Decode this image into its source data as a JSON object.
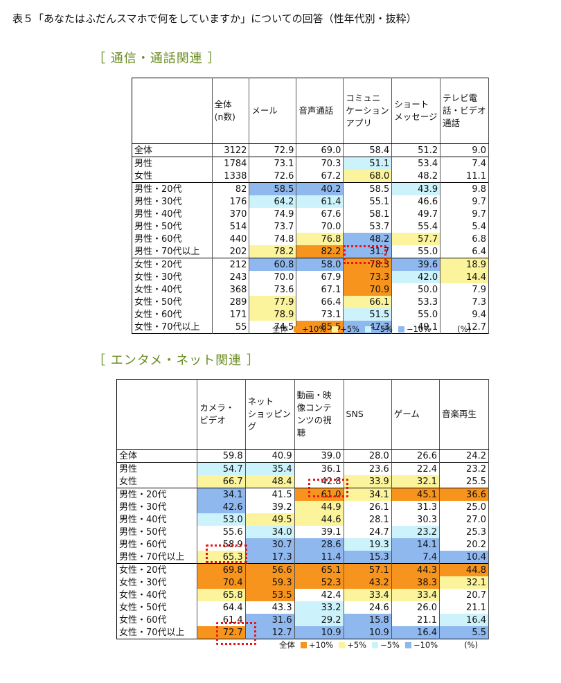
{
  "title": "表５「あなたはふだんスマホで何をしていますか」についての回答（性年代別・抜粋）",
  "sections": [
    {
      "title": "［ 通信・通話関連 ］",
      "headers": [
        "",
        "全体\n(n数)",
        "メール",
        "音声通話",
        "コミュニ\nケーション\nアプリ",
        "ショート\nメッセージ",
        "テレビ電\n話・ビデオ\n通話"
      ],
      "rows": [
        {
          "label": "全体",
          "n": "3122",
          "v": [
            "72.9",
            "69.0",
            "58.4",
            "51.2",
            "9.0"
          ],
          "h": [
            "",
            "",
            "",
            "",
            ""
          ]
        },
        {
          "label": "男性",
          "n": "1784",
          "v": [
            "73.1",
            "70.3",
            "51.1",
            "53.4",
            "7.4"
          ],
          "h": [
            "",
            "",
            "lo5",
            "",
            ""
          ]
        },
        {
          "label": "女性",
          "n": "1338",
          "v": [
            "72.6",
            "67.2",
            "68.0",
            "48.2",
            "11.1"
          ],
          "h": [
            "",
            "",
            "hi5",
            "",
            ""
          ]
        },
        {
          "label": "男性・20代",
          "n": "82",
          "v": [
            "58.5",
            "40.2",
            "58.5",
            "43.9",
            "9.8"
          ],
          "h": [
            "lo10",
            "lo10",
            "",
            "lo5",
            ""
          ]
        },
        {
          "label": "男性・30代",
          "n": "176",
          "v": [
            "64.2",
            "61.4",
            "55.1",
            "46.6",
            "9.7"
          ],
          "h": [
            "lo5",
            "lo5",
            "",
            "",
            ""
          ]
        },
        {
          "label": "男性・40代",
          "n": "370",
          "v": [
            "74.9",
            "67.6",
            "58.1",
            "49.7",
            "9.7"
          ],
          "h": [
            "",
            "",
            "",
            "",
            ""
          ]
        },
        {
          "label": "男性・50代",
          "n": "514",
          "v": [
            "73.7",
            "70.0",
            "53.7",
            "55.4",
            "5.4"
          ],
          "h": [
            "",
            "",
            "",
            "",
            ""
          ]
        },
        {
          "label": "男性・60代",
          "n": "440",
          "v": [
            "74.8",
            "76.8",
            "48.2",
            "57.7",
            "6.8"
          ],
          "h": [
            "",
            "hi5",
            "lo10",
            "hi5",
            ""
          ]
        },
        {
          "label": "男性・70代以上",
          "n": "202",
          "v": [
            "78.2",
            "82.2",
            "31.7",
            "55.0",
            "6.4"
          ],
          "h": [
            "hi5",
            "hi10",
            "lo10",
            "",
            ""
          ]
        },
        {
          "label": "女性・20代",
          "n": "212",
          "v": [
            "60.8",
            "58.0",
            "78.3",
            "39.6",
            "18.9"
          ],
          "h": [
            "lo10",
            "lo10",
            "hi10",
            "lo10",
            "hi5"
          ]
        },
        {
          "label": "女性・30代",
          "n": "243",
          "v": [
            "70.0",
            "67.9",
            "73.3",
            "42.0",
            "14.4"
          ],
          "h": [
            "",
            "",
            "hi10",
            "lo5",
            "hi5"
          ]
        },
        {
          "label": "女性・40代",
          "n": "368",
          "v": [
            "73.6",
            "67.1",
            "70.9",
            "50.0",
            "7.9"
          ],
          "h": [
            "",
            "",
            "hi10",
            "",
            ""
          ]
        },
        {
          "label": "女性・50代",
          "n": "289",
          "v": [
            "77.9",
            "66.4",
            "66.1",
            "53.3",
            "7.3"
          ],
          "h": [
            "hi5",
            "",
            "hi5",
            "",
            ""
          ]
        },
        {
          "label": "女性・60代",
          "n": "171",
          "v": [
            "78.9",
            "73.1",
            "51.5",
            "55.0",
            "9.4"
          ],
          "h": [
            "hi5",
            "",
            "lo5",
            "",
            ""
          ]
        },
        {
          "label": "女性・70代以上",
          "n": "55",
          "v": [
            "74.5",
            "85.5",
            "47.3",
            "49.1",
            "12.7"
          ],
          "h": [
            "",
            "hi10",
            "lo10",
            "",
            ""
          ]
        }
      ]
    },
    {
      "title": "［ エンタメ・ネット関連 ］",
      "headers": [
        "",
        "カメラ・\nビデオ",
        "ネット\nショッピン\nグ",
        "動画・映\n像コンテ\nンツの視\n聴",
        "SNS",
        "ゲーム",
        "音楽再生"
      ],
      "rows": [
        {
          "label": "全体",
          "v": [
            "59.8",
            "40.9",
            "39.0",
            "28.0",
            "26.6",
            "24.2"
          ],
          "h": [
            "",
            "",
            "",
            "",
            "",
            ""
          ]
        },
        {
          "label": "男性",
          "v": [
            "54.7",
            "35.4",
            "36.1",
            "23.6",
            "22.4",
            "23.2"
          ],
          "h": [
            "lo5",
            "lo5",
            "",
            "",
            "",
            ""
          ]
        },
        {
          "label": "女性",
          "v": [
            "66.7",
            "48.4",
            "42.8",
            "33.9",
            "32.1",
            "25.5"
          ],
          "h": [
            "hi5",
            "hi5",
            "",
            "hi5",
            "hi5",
            ""
          ]
        },
        {
          "label": "男性・20代",
          "v": [
            "34.1",
            "41.5",
            "61.0",
            "34.1",
            "45.1",
            "36.6"
          ],
          "h": [
            "lo10",
            "",
            "hi10",
            "hi5",
            "hi10",
            "hi10"
          ]
        },
        {
          "label": "男性・30代",
          "v": [
            "42.6",
            "39.2",
            "44.9",
            "26.1",
            "31.3",
            "25.0"
          ],
          "h": [
            "lo10",
            "",
            "hi5",
            "",
            "",
            ""
          ]
        },
        {
          "label": "男性・40代",
          "v": [
            "53.0",
            "49.5",
            "44.6",
            "28.1",
            "30.3",
            "27.0"
          ],
          "h": [
            "lo5",
            "hi5",
            "hi5",
            "",
            "",
            ""
          ]
        },
        {
          "label": "男性・50代",
          "v": [
            "55.6",
            "34.0",
            "39.1",
            "24.7",
            "23.2",
            "25.3"
          ],
          "h": [
            "",
            "lo5",
            "",
            "",
            "lo5",
            ""
          ]
        },
        {
          "label": "男性・60代",
          "v": [
            "58.9",
            "30.7",
            "28.6",
            "19.3",
            "14.1",
            "20.2"
          ],
          "h": [
            "",
            "lo10",
            "lo10",
            "lo5",
            "lo10",
            ""
          ]
        },
        {
          "label": "男性・70代以上",
          "v": [
            "65.3",
            "17.3",
            "11.4",
            "15.3",
            "7.4",
            "10.4"
          ],
          "h": [
            "hi5",
            "lo10",
            "lo10",
            "lo10",
            "lo10",
            "lo10"
          ]
        },
        {
          "label": "女性・20代",
          "v": [
            "69.8",
            "56.6",
            "65.1",
            "57.1",
            "44.3",
            "44.8"
          ],
          "h": [
            "hi10",
            "hi10",
            "hi10",
            "hi10",
            "hi10",
            "hi10"
          ]
        },
        {
          "label": "女性・30代",
          "v": [
            "70.4",
            "59.3",
            "52.3",
            "43.2",
            "38.3",
            "32.1"
          ],
          "h": [
            "hi10",
            "hi10",
            "hi10",
            "hi10",
            "hi10",
            "hi5"
          ]
        },
        {
          "label": "女性・40代",
          "v": [
            "65.8",
            "53.5",
            "42.4",
            "33.4",
            "33.4",
            "20.7"
          ],
          "h": [
            "hi5",
            "hi10",
            "",
            "hi5",
            "hi5",
            ""
          ]
        },
        {
          "label": "女性・50代",
          "v": [
            "64.4",
            "43.3",
            "33.2",
            "24.6",
            "26.0",
            "21.1"
          ],
          "h": [
            "",
            "",
            "lo5",
            "",
            "",
            ""
          ]
        },
        {
          "label": "女性・60代",
          "v": [
            "61.4",
            "31.6",
            "29.2",
            "15.8",
            "21.1",
            "16.4"
          ],
          "h": [
            "",
            "lo10",
            "lo5",
            "lo10",
            "",
            "lo5"
          ]
        },
        {
          "label": "女性・70代以上",
          "v": [
            "72.7",
            "12.7",
            "10.9",
            "10.9",
            "16.4",
            "5.5"
          ],
          "h": [
            "hi10",
            "lo10",
            "lo10",
            "lo10",
            "lo10",
            "lo10"
          ]
        }
      ]
    }
  ],
  "legend": {
    "prefix": "全体",
    "items": [
      "+10%",
      "+5%",
      "−5%",
      "−10%"
    ],
    "unit": "(%)",
    "colors": {
      "hi10": "#f7941d",
      "hi5": "#fbf49c",
      "lo5": "#ccf3fb",
      "lo10": "#8fb8ee"
    }
  }
}
